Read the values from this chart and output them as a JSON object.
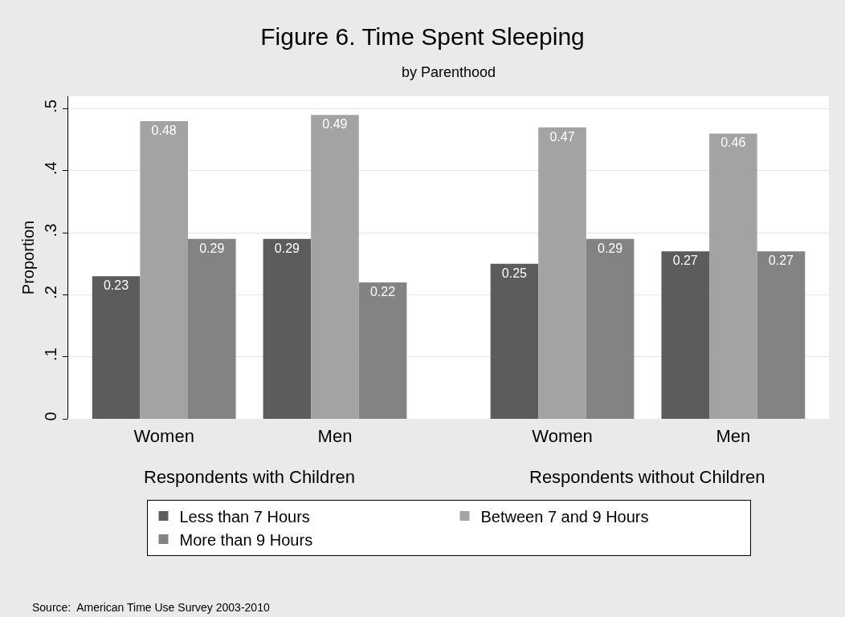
{
  "chart_data": {
    "type": "bar",
    "title": "Figure 6. Time Spent Sleeping",
    "subtitle": "by Parenthood",
    "ylabel": "Proportion",
    "categories": [
      "Women",
      "Men",
      "Women",
      "Men"
    ],
    "series": [
      {
        "name": "Less than 7 Hours",
        "color": "#5c5c5c",
        "values": [
          0.23,
          0.29,
          0.25,
          0.27
        ]
      },
      {
        "name": "Between 7 and 9 Hours",
        "color": "#a3a3a3",
        "values": [
          0.48,
          0.49,
          0.47,
          0.46
        ]
      },
      {
        "name": "More than 9 Hours",
        "color": "#838383",
        "values": [
          0.29,
          0.22,
          0.29,
          0.27
        ]
      }
    ],
    "ylim": [
      0,
      0.52
    ],
    "yticks": [
      0,
      {
        "value": 0.1,
        "label": ".1"
      },
      {
        "value": 0.2,
        "label": ".2"
      },
      {
        "value": 0.3,
        "label": ".3"
      },
      {
        "value": 0.4,
        "label": ".4"
      },
      {
        "value": 0.5,
        "label": ".5"
      }
    ],
    "grid": "y",
    "legend": "bottom",
    "data_labels": true,
    "annotations": [
      "Respondents with Children",
      "Respondents without Children",
      "Source:  American Time Use Survey 2003-2010"
    ]
  }
}
